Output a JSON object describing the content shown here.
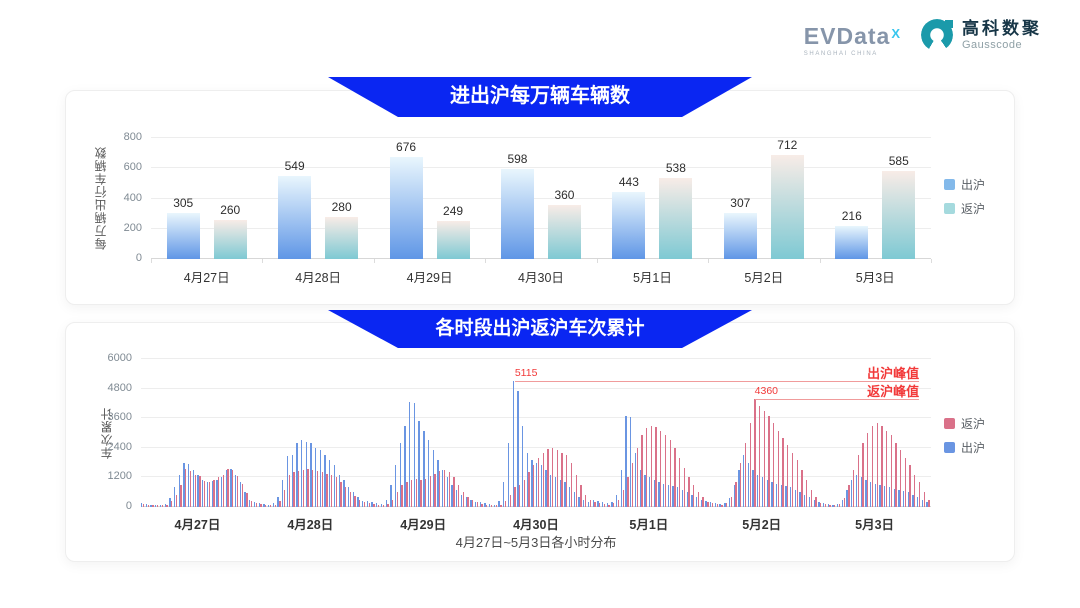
{
  "header": {
    "evdata_logo": {
      "brand": "EVData",
      "sup": "X",
      "subtext": "SHANGHAI CHINA"
    },
    "gausscode_logo": {
      "cn": "高科数聚",
      "en": "Gausscode"
    }
  },
  "colors": {
    "banner_blue": "#0a26f2",
    "annotation_red": "#f23a3a",
    "annotation_line": "#f09b9b",
    "gridline": "#ededed"
  },
  "chart_data": [
    {
      "type": "bar",
      "title": "进出沪每万辆车辆数",
      "ylabel": "每万辆出行车辆数",
      "ylim": [
        0,
        800
      ],
      "yticks": [
        0,
        200,
        400,
        600,
        800
      ],
      "grid": true,
      "legend_position": "right",
      "legend_order": [
        "出沪",
        "返沪"
      ],
      "categories": [
        "4月27日",
        "4月28日",
        "4月29日",
        "4月30日",
        "5月1日",
        "5月2日",
        "5月3日"
      ],
      "series": [
        {
          "name": "出沪",
          "legend_color": "#83b9ea",
          "gradient": [
            "#e9f6fd",
            "#5f96e6"
          ],
          "values": [
            305,
            549,
            676,
            598,
            443,
            307,
            216
          ]
        },
        {
          "name": "返沪",
          "legend_color": "#a5dade",
          "gradient": [
            "#f8ece7",
            "#7ec9d3"
          ],
          "values": [
            260,
            280,
            249,
            360,
            538,
            712,
            585
          ]
        }
      ]
    },
    {
      "type": "bar",
      "title": "各时段出沪返沪车次累计",
      "ylabel": "车次累计",
      "xlabel": "4月27日~5月3日各小时分布",
      "ylim": [
        0,
        6000
      ],
      "yticks": [
        0,
        1200,
        2400,
        3600,
        4800,
        6000
      ],
      "grid": true,
      "legend_position": "right",
      "legend_order": [
        "返沪",
        "出沪"
      ],
      "categories": [
        "4月27日",
        "4月28日",
        "4月29日",
        "4月30日",
        "5月1日",
        "5月2日",
        "5月3日"
      ],
      "hours_per_day": 24,
      "series": [
        {
          "name": "出沪",
          "color": "#6a95e2",
          "values": [
            150,
            120,
            90,
            80,
            80,
            130,
            350,
            800,
            1300,
            1800,
            1750,
            1500,
            1300,
            1100,
            1000,
            1050,
            1100,
            1200,
            1500,
            1550,
            1300,
            1000,
            600,
            300,
            200,
            150,
            120,
            100,
            150,
            400,
            1100,
            2050,
            2100,
            2600,
            2700,
            2650,
            2600,
            2400,
            2300,
            2100,
            1900,
            1700,
            1300,
            1100,
            800,
            600,
            400,
            250,
            250,
            200,
            150,
            120,
            300,
            900,
            1700,
            2600,
            3300,
            4250,
            4200,
            3500,
            3100,
            2700,
            2300,
            1900,
            1500,
            1200,
            900,
            700,
            500,
            400,
            300,
            200,
            200,
            150,
            120,
            100,
            250,
            1000,
            2600,
            5115,
            4700,
            3300,
            2200,
            1900,
            1800,
            1700,
            1500,
            1300,
            1200,
            1100,
            1000,
            800,
            600,
            400,
            300,
            200,
            300,
            250,
            200,
            150,
            200,
            500,
            1500,
            3700,
            3650,
            2200,
            1500,
            1300,
            1200,
            1100,
            1000,
            950,
            900,
            850,
            800,
            700,
            600,
            500,
            400,
            300,
            250,
            200,
            150,
            120,
            150,
            350,
            900,
            1500,
            2100,
            1800,
            1500,
            1300,
            1200,
            1100,
            1000,
            950,
            900,
            850,
            800,
            700,
            600,
            500,
            400,
            300,
            200,
            150,
            120,
            100,
            120,
            300,
            700,
            1100,
            1300,
            1200,
            1100,
            1000,
            950,
            900,
            850,
            800,
            750,
            700,
            650,
            600,
            500,
            400,
            300,
            200
          ]
        },
        {
          "name": "返沪",
          "color": "#da7189",
          "values": [
            120,
            100,
            80,
            70,
            70,
            100,
            250,
            500,
            900,
            1550,
            1450,
            1300,
            1250,
            1050,
            1000,
            1100,
            1200,
            1300,
            1550,
            1500,
            1250,
            950,
            550,
            250,
            150,
            120,
            100,
            90,
            100,
            250,
            700,
            1300,
            1400,
            1450,
            1500,
            1550,
            1500,
            1450,
            1400,
            1350,
            1300,
            1200,
            1000,
            800,
            600,
            450,
            300,
            200,
            150,
            120,
            100,
            90,
            120,
            300,
            600,
            900,
            1000,
            1100,
            1150,
            1100,
            1150,
            1250,
            1350,
            1450,
            1500,
            1400,
            1200,
            900,
            600,
            400,
            300,
            200,
            120,
            100,
            90,
            80,
            100,
            250,
            500,
            800,
            900,
            1100,
            1400,
            1700,
            2000,
            2200,
            2350,
            2400,
            2300,
            2200,
            2100,
            1800,
            1300,
            900,
            500,
            300,
            200,
            150,
            120,
            100,
            150,
            300,
            700,
            1200,
            1800,
            2400,
            2900,
            3200,
            3300,
            3250,
            3100,
            2900,
            2700,
            2400,
            2000,
            1600,
            1200,
            900,
            600,
            400,
            200,
            150,
            120,
            100,
            150,
            400,
            1000,
            1800,
            2600,
            3400,
            4360,
            4100,
            3900,
            3700,
            3400,
            3100,
            2800,
            2500,
            2200,
            1900,
            1500,
            1100,
            700,
            400,
            150,
            120,
            100,
            90,
            120,
            350,
            900,
            1500,
            2100,
            2600,
            3000,
            3300,
            3400,
            3300,
            3100,
            2900,
            2600,
            2300,
            2000,
            1700,
            1300,
            1000,
            600,
            300
          ]
        }
      ],
      "annotations": [
        {
          "text": "出沪峰值",
          "value_label": "5115",
          "value": 5115,
          "slot": 79
        },
        {
          "text": "返沪峰值",
          "value_label": "4360",
          "value": 4360,
          "slot": 130
        }
      ]
    }
  ]
}
